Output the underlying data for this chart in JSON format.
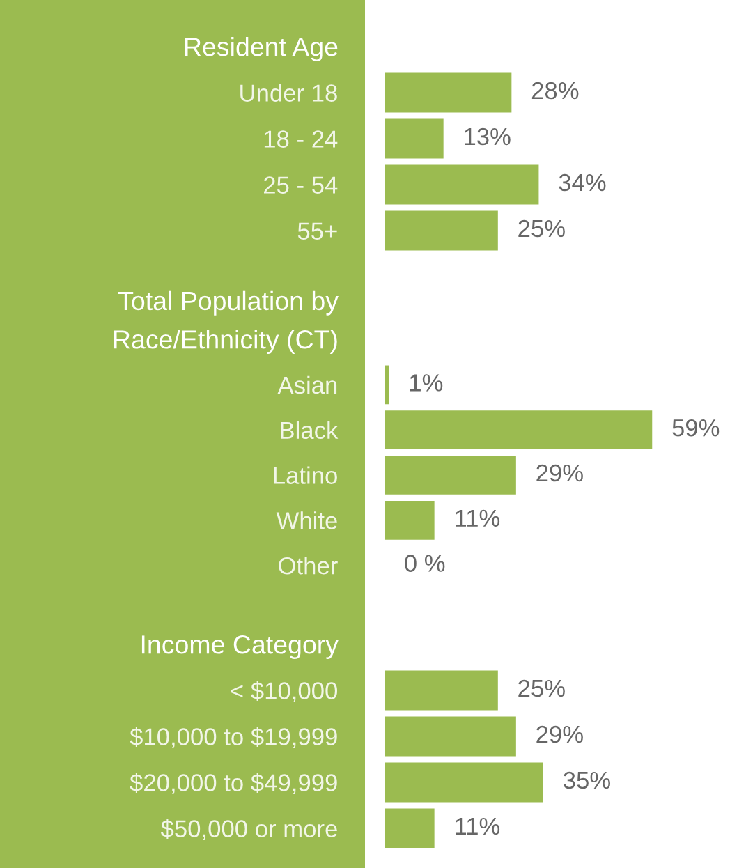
{
  "chart_data": [
    {
      "type": "bar",
      "orientation": "horizontal",
      "title": "Resident Age",
      "categories": [
        "Under 18",
        "18 - 24",
        "25 - 54",
        "55+"
      ],
      "values": [
        28,
        13,
        34,
        25
      ],
      "value_labels": [
        "28%",
        "13%",
        "34%",
        "25%"
      ],
      "color": "#9bbb50",
      "tick_labels": "y"
    },
    {
      "type": "bar",
      "orientation": "horizontal",
      "title": "Total Population by\nRace/Ethnicity (CT)",
      "categories": [
        "Asian",
        "Black",
        "Latino",
        "White",
        "Other"
      ],
      "values": [
        1,
        59,
        29,
        11,
        0
      ],
      "value_labels": [
        "1%",
        "59%",
        "29%",
        "11%",
        "0 %"
      ],
      "color": "#9bbb50",
      "tick_labels": "y"
    },
    {
      "type": "bar",
      "orientation": "horizontal",
      "title": "Income Category",
      "categories": [
        "< $10,000",
        "$10,000 to $19,999",
        "$20,000 to $49,999",
        "$50,000 or more"
      ],
      "values": [
        25,
        29,
        35,
        11
      ],
      "value_labels": [
        "25%",
        "29%",
        "35%",
        "11%"
      ],
      "color": "#9bbb50",
      "tick_labels": "y"
    }
  ]
}
